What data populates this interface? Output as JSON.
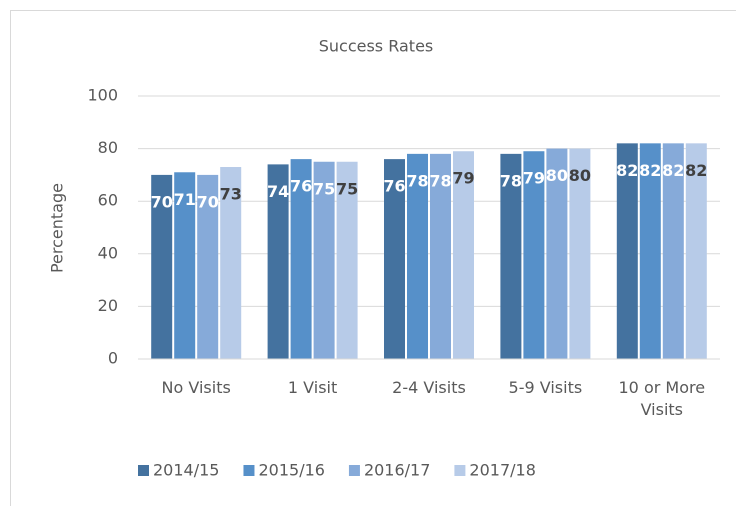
{
  "chart_data": {
    "type": "bar",
    "title": "Success Rates",
    "ylabel": "Percentage",
    "categories": [
      "No Visits",
      "1 Visit",
      "2-4 Visits",
      "5-9 Visits",
      "10 or More Visits"
    ],
    "series": [
      {
        "name": "2014/15",
        "color": "#44729f",
        "values": [
          70,
          74,
          76,
          78,
          82
        ]
      },
      {
        "name": "2015/16",
        "color": "#5690c9",
        "values": [
          71,
          76,
          78,
          79,
          82
        ]
      },
      {
        "name": "2016/17",
        "color": "#86aad9",
        "values": [
          70,
          75,
          78,
          80,
          82
        ]
      },
      {
        "name": "2017/18",
        "color": "#b7cbe8",
        "values": [
          73,
          75,
          79,
          80,
          82
        ]
      }
    ],
    "ylim": [
      0,
      100
    ],
    "yticks": [
      0,
      20,
      40,
      60,
      80,
      100
    ],
    "grid": true,
    "legend": "bottom"
  }
}
